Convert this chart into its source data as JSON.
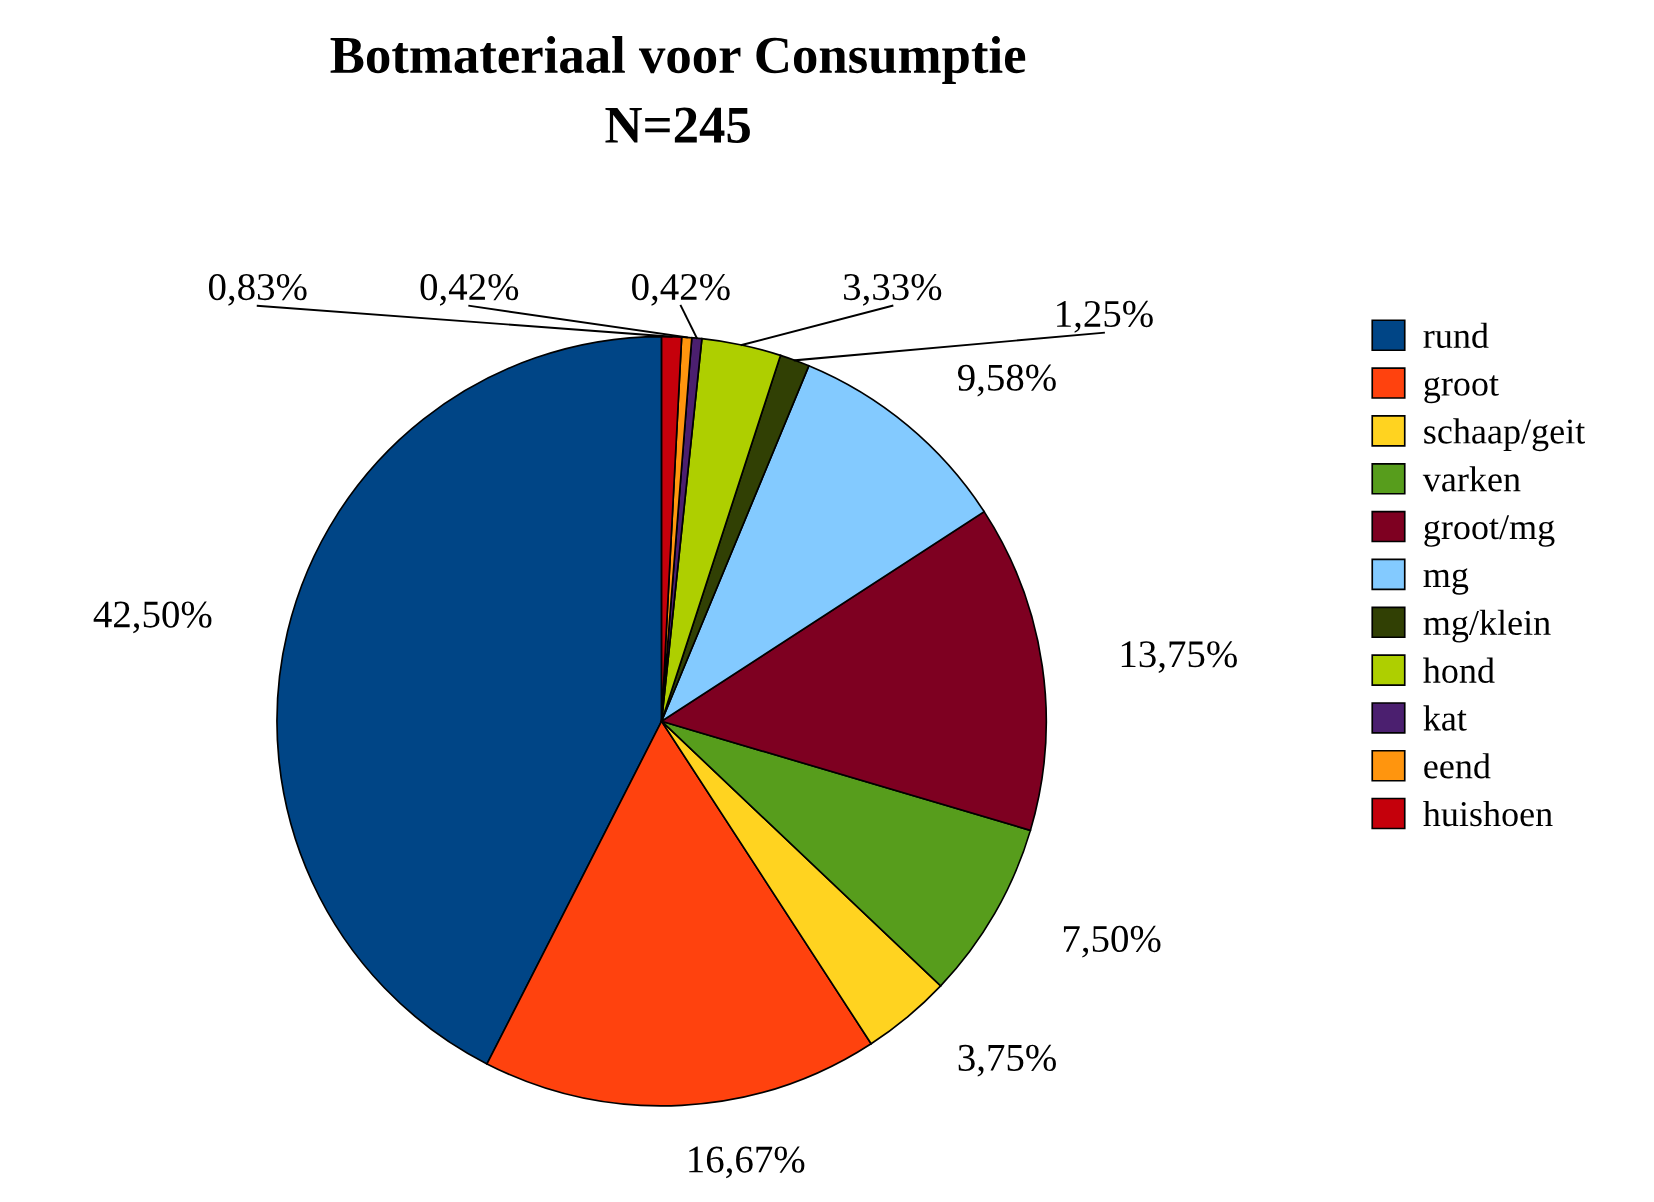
{
  "chart_data": {
    "type": "pie",
    "title": "Botmateriaal voor Consumptie\nN=245",
    "categories": [
      "rund",
      "groot",
      "schaap/geit",
      "varken",
      "groot/mg",
      "mg",
      "mg/klein",
      "hond",
      "kat",
      "eend",
      "huishoen"
    ],
    "values": [
      42.5,
      16.67,
      3.75,
      7.5,
      13.75,
      9.58,
      1.25,
      3.33,
      0.42,
      0.42,
      0.83
    ],
    "colors": [
      "#004586",
      "#ff420e",
      "#ffd320",
      "#579d1c",
      "#7e0021",
      "#83caff",
      "#314004",
      "#aecf00",
      "#4b1f6f",
      "#ff950e",
      "#c5000b"
    ],
    "value_labels": [
      "42,50%",
      "16,67%",
      "3,75%",
      "7,50%",
      "13,75%",
      "9,58%",
      "1,25%",
      "3,33%",
      "0,42%",
      "0,42%",
      "0,83%"
    ],
    "legend": "right"
  }
}
